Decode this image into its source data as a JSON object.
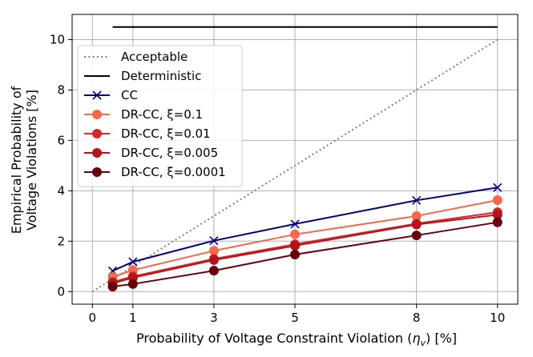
{
  "chart_data": {
    "type": "line",
    "title": "",
    "xlabel": "Probability of Voltage Constraint Violation (",
    "xlabel_symbol": "η",
    "xlabel_subscript": "v",
    "xlabel_suffix": ") [%]",
    "ylabel_lines": [
      "Empirical Probability of",
      "Voltage Violations [%]"
    ],
    "xlim": [
      -0.5,
      10.5
    ],
    "ylim": [
      -0.5,
      11.0
    ],
    "xticks": [
      0,
      1,
      3,
      5,
      8,
      10
    ],
    "yticks": [
      0,
      2,
      4,
      6,
      8,
      10
    ],
    "grid": true,
    "legend_position": "upper-left",
    "series": [
      {
        "name": "Acceptable",
        "color": "#808080",
        "style": "dotted",
        "marker": "none",
        "x": [
          0,
          10
        ],
        "y": [
          0,
          10
        ]
      },
      {
        "name": "Deterministic",
        "color": "#000000",
        "style": "solid",
        "marker": "none",
        "x": [
          0.5,
          10
        ],
        "y": [
          10.5,
          10.5
        ]
      },
      {
        "name": "CC",
        "color": "#000080",
        "style": "solid",
        "marker": "x",
        "x": [
          0.5,
          1,
          3,
          5,
          8,
          10
        ],
        "y": [
          0.82,
          1.18,
          2.02,
          2.68,
          3.62,
          4.13
        ]
      },
      {
        "name": "DR-CC, ξ=0.1",
        "color": "#f4694b",
        "style": "solid",
        "marker": "circle",
        "x": [
          0.5,
          1,
          3,
          5,
          8,
          10
        ],
        "y": [
          0.58,
          0.85,
          1.62,
          2.27,
          3.0,
          3.63
        ]
      },
      {
        "name": "DR-CC, ξ=0.01",
        "color": "#d42a2a",
        "style": "solid",
        "marker": "circle",
        "x": [
          0.5,
          1,
          3,
          5,
          8,
          10
        ],
        "y": [
          0.38,
          0.6,
          1.3,
          1.88,
          2.7,
          3.15
        ]
      },
      {
        "name": "DR-CC, ξ=0.005",
        "color": "#b3141d",
        "style": "solid",
        "marker": "circle",
        "x": [
          0.5,
          1,
          3,
          5,
          8,
          10
        ],
        "y": [
          0.33,
          0.55,
          1.25,
          1.82,
          2.66,
          3.05
        ]
      },
      {
        "name": "DR-CC, ξ=0.0001",
        "color": "#67000d",
        "style": "solid",
        "marker": "circle",
        "x": [
          0.5,
          1,
          3,
          5,
          8,
          10
        ],
        "y": [
          0.2,
          0.3,
          0.83,
          1.47,
          2.23,
          2.75
        ]
      }
    ]
  }
}
